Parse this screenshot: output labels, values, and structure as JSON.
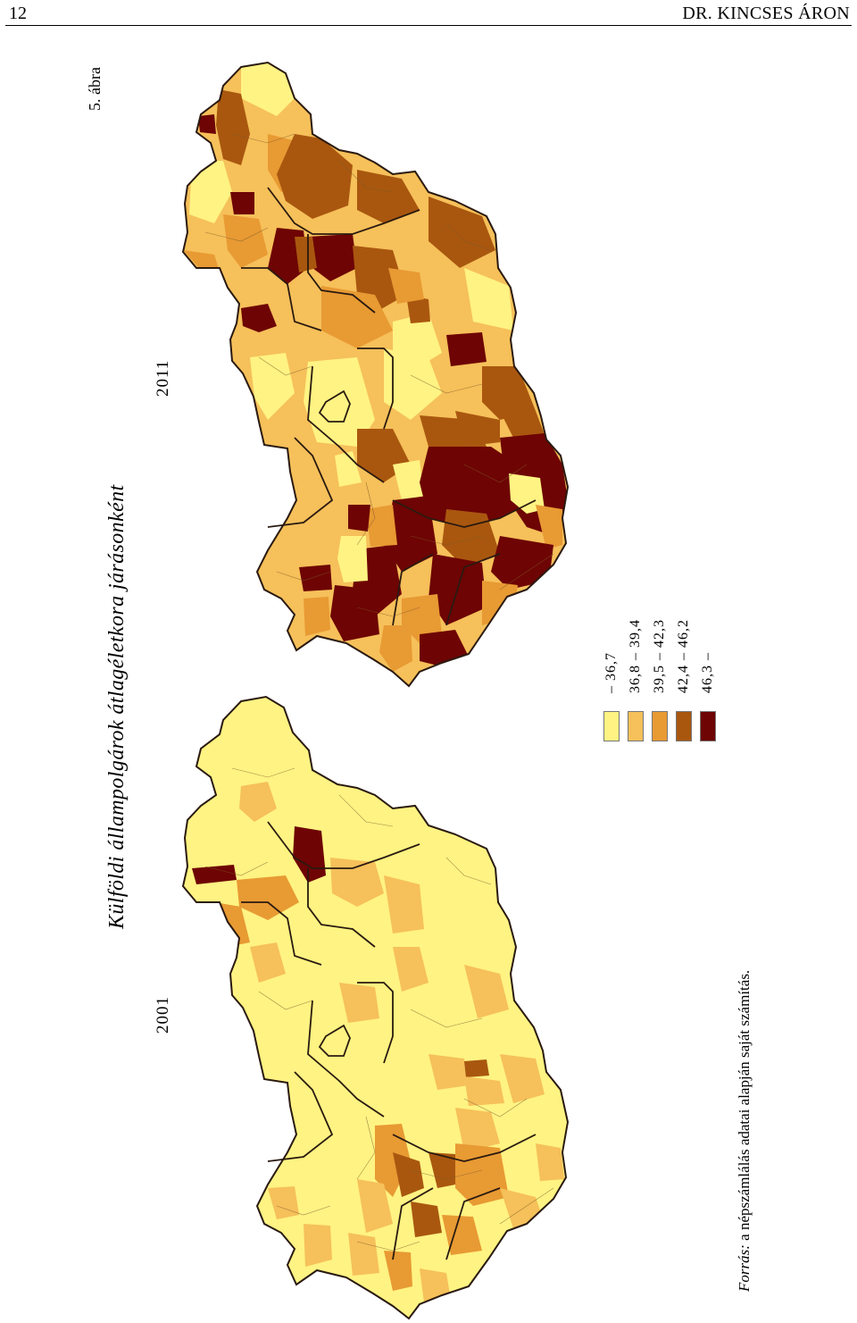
{
  "header": {
    "page_number": "12",
    "running_head": "DR. KINCSES ÁRON"
  },
  "figure": {
    "number": "5. ábra",
    "title": "Külföldi állampolgárok átlagéletkora járásonként",
    "maps": [
      {
        "label": "2011"
      },
      {
        "label": "2001"
      }
    ]
  },
  "legend": {
    "items": [
      {
        "label": "– 36,7",
        "color": "#fff383"
      },
      {
        "label": "36,8 – 39,4",
        "color": "#f6c05a"
      },
      {
        "label": "39,5 – 42,3",
        "color": "#e89a33"
      },
      {
        "label": "42,4 – 46,2",
        "color": "#a9570f"
      },
      {
        "label": "46,3 –",
        "color": "#6e0404"
      }
    ]
  },
  "source": {
    "lead": "Forrás:",
    "text": " a népszámlálás adatai alapján saját számítás."
  }
}
